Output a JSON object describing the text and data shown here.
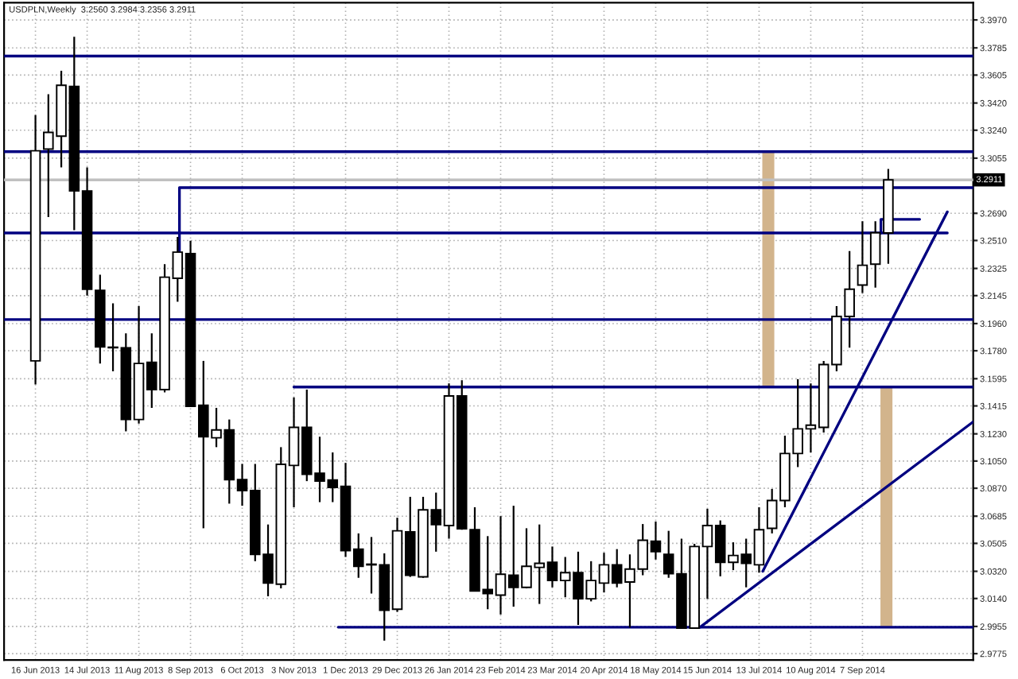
{
  "chart_data": {
    "type": "candlestick",
    "title": "USDPLN,Weekly  3.2560 3.2984 3.2356 3.2911",
    "x": [
      "2013-06-16",
      "2013-06-23",
      "2013-06-30",
      "2013-07-07",
      "2013-07-14",
      "2013-07-21",
      "2013-07-28",
      "2013-08-04",
      "2013-08-11",
      "2013-08-18",
      "2013-08-25",
      "2013-09-01",
      "2013-09-08",
      "2013-09-15",
      "2013-09-22",
      "2013-09-29",
      "2013-10-06",
      "2013-10-13",
      "2013-10-20",
      "2013-10-27",
      "2013-11-03",
      "2013-11-10",
      "2013-11-17",
      "2013-11-24",
      "2013-12-01",
      "2013-12-08",
      "2013-12-15",
      "2013-12-22",
      "2013-12-29",
      "2014-01-05",
      "2014-01-12",
      "2014-01-19",
      "2014-01-26",
      "2014-02-02",
      "2014-02-09",
      "2014-02-16",
      "2014-02-23",
      "2014-03-02",
      "2014-03-09",
      "2014-03-16",
      "2014-03-23",
      "2014-03-30",
      "2014-04-06",
      "2014-04-13",
      "2014-04-20",
      "2014-04-27",
      "2014-05-04",
      "2014-05-11",
      "2014-05-18",
      "2014-05-25",
      "2014-06-01",
      "2014-06-08",
      "2014-06-15",
      "2014-06-22",
      "2014-06-29",
      "2014-07-06",
      "2014-07-13",
      "2014-07-20",
      "2014-07-27",
      "2014-08-03",
      "2014-08-10",
      "2014-08-17",
      "2014-08-24",
      "2014-08-31",
      "2014-09-07",
      "2014-09-14",
      "2014-09-21"
    ],
    "ohlc": [
      [
        3.1713,
        3.334,
        3.1557,
        3.3104
      ],
      [
        3.3115,
        3.3478,
        3.2665,
        3.3226
      ],
      [
        3.3201,
        3.3634,
        3.2994,
        3.3537
      ],
      [
        3.353,
        3.3859,
        3.2578,
        3.2838
      ],
      [
        3.2838,
        3.2994,
        3.2146,
        3.2187
      ],
      [
        3.218,
        3.2284,
        3.1696,
        3.1806
      ],
      [
        3.1803,
        3.2094,
        3.1644,
        3.18
      ],
      [
        3.18,
        3.1896,
        3.1246,
        3.1325
      ],
      [
        3.1325,
        3.2076,
        3.1298,
        3.1696
      ],
      [
        3.1703,
        3.1896,
        3.1402,
        3.1523
      ],
      [
        3.1523,
        3.2353,
        3.1505,
        3.2267
      ],
      [
        3.226,
        3.2533,
        3.2104,
        3.2433
      ],
      [
        3.2423,
        3.2509,
        3.1412,
        3.1412
      ],
      [
        3.1419,
        3.1713,
        3.0605,
        3.1211
      ],
      [
        3.1204,
        3.1402,
        3.1142,
        3.1256
      ],
      [
        3.1256,
        3.1325,
        3.0768,
        3.0927
      ],
      [
        3.0927,
        3.1031,
        3.0754,
        3.0855
      ],
      [
        3.0855,
        3.1031,
        3.0387,
        3.0432
      ],
      [
        3.0432,
        3.063,
        3.0155,
        3.0242
      ],
      [
        3.0235,
        3.1142,
        3.0207,
        3.1028
      ],
      [
        3.1021,
        3.1471,
        3.0744,
        3.1273
      ],
      [
        3.1273,
        3.1523,
        3.0917,
        3.0962
      ],
      [
        3.0969,
        3.1211,
        3.0778,
        3.0917
      ],
      [
        3.0924,
        3.1107,
        3.0778,
        3.0875
      ],
      [
        3.0882,
        3.1038,
        3.0415,
        3.0457
      ],
      [
        3.0467,
        3.0571,
        3.0277,
        3.0353
      ],
      [
        3.0366,
        3.0547,
        3.0173,
        3.0363
      ],
      [
        3.0363,
        3.0439,
        2.9861,
        3.0062
      ],
      [
        3.0069,
        3.0675,
        3.0052,
        3.0588
      ],
      [
        3.0581,
        3.0813,
        3.0283,
        3.0294
      ],
      [
        3.0283,
        3.0813,
        3.0277,
        3.0727
      ],
      [
        3.0727,
        3.0841,
        3.045,
        3.063
      ],
      [
        3.0623,
        3.1564,
        3.0536,
        3.1481
      ],
      [
        3.1481,
        3.1585,
        3.0595,
        3.0602
      ],
      [
        3.0595,
        3.0744,
        3.019,
        3.019
      ],
      [
        3.02,
        3.0553,
        3.0069,
        3.0173
      ],
      [
        3.0162,
        3.0685,
        3.0034,
        3.0301
      ],
      [
        3.0294,
        3.0754,
        3.0086,
        3.0214
      ],
      [
        3.0214,
        3.0605,
        3.0207,
        3.0353
      ],
      [
        3.0346,
        3.063,
        3.0104,
        3.0373
      ],
      [
        3.038,
        3.0484,
        3.0214,
        3.0259
      ],
      [
        3.0259,
        3.0415,
        3.0148,
        3.0311
      ],
      [
        3.0311,
        3.045,
        2.9965,
        3.0138
      ],
      [
        3.0138,
        3.0387,
        3.0121,
        3.0259
      ],
      [
        3.0242,
        3.0443,
        3.018,
        3.0363
      ],
      [
        3.0363,
        3.0467,
        3.0214,
        3.0242
      ],
      [
        3.0249,
        3.0432,
        2.9948,
        3.0335
      ],
      [
        3.0335,
        3.0633,
        3.0294,
        3.0526
      ],
      [
        3.0519,
        3.065,
        3.0398,
        3.045
      ],
      [
        3.0432,
        3.0588,
        3.0277,
        3.0304
      ],
      [
        3.0304,
        3.0536,
        2.9944,
        2.9944
      ],
      [
        2.9944,
        3.0502,
        2.9944,
        3.0484
      ],
      [
        3.0484,
        3.0734,
        3.0138,
        3.0623
      ],
      [
        3.0623,
        3.0657,
        3.0287,
        3.038
      ],
      [
        3.038,
        3.0512,
        3.0328,
        3.0425
      ],
      [
        3.0432,
        3.0536,
        3.0214,
        3.0373
      ],
      [
        3.0363,
        3.0744,
        3.0311,
        3.0595
      ],
      [
        3.0605,
        3.0865,
        3.0571,
        3.0789
      ],
      [
        3.0789,
        3.1218,
        3.0744,
        3.11
      ],
      [
        3.11,
        3.1592,
        3.101,
        3.1263
      ],
      [
        3.1263,
        3.1564,
        3.1107,
        3.1287
      ],
      [
        3.1273,
        3.1713,
        3.1239,
        3.1689
      ],
      [
        3.1689,
        3.2076,
        3.1644,
        3.2007
      ],
      [
        3.2007,
        3.244,
        3.18,
        3.2187
      ],
      [
        3.2215,
        3.2637,
        3.2163,
        3.2346
      ],
      [
        3.2353,
        3.2637,
        3.2198,
        3.2561
      ],
      [
        3.256,
        3.2984,
        3.2356,
        3.2911
      ]
    ],
    "series": [
      {
        "type": "line",
        "color": "#000080",
        "x": [
          "2013-05-30",
          "2014-10-23"
        ],
        "values": [
          3.256,
          3.256
        ]
      },
      {
        "type": "line",
        "color": "#000080",
        "x": [
          "2013-09-02",
          "2013-09-02",
          "2014-11-06"
        ],
        "values": [
          3.242,
          3.286,
          3.286
        ]
      },
      {
        "type": "line",
        "color": "#000080",
        "x": [
          "2013-11-03",
          "2014-11-06"
        ],
        "values": [
          3.154,
          3.154
        ]
      },
      {
        "type": "line",
        "color": "#000080",
        "x": [
          "2013-11-27",
          "2014-11-06"
        ],
        "values": [
          2.995,
          2.995
        ]
      },
      {
        "type": "line",
        "color": "#000080",
        "x": [
          "2014-09-17",
          "2014-09-17",
          "2014-10-08"
        ],
        "values": [
          3.256,
          3.265,
          3.265
        ]
      },
      {
        "type": "line",
        "color": "#000080",
        "x": [
          "2014-06-11",
          "2014-11-06"
        ],
        "values": [
          2.995,
          3.131
        ]
      },
      {
        "type": "line",
        "color": "#000080",
        "x": [
          "2014-07-15",
          "2014-10-23"
        ],
        "values": [
          3.032,
          3.27
        ]
      },
      {
        "type": "bar",
        "color": "#d2b48c",
        "x": [
          "2014-07-18"
        ],
        "base": [
          3.154
        ],
        "values": [
          0.156
        ]
      },
      {
        "type": "bar",
        "color": "#d2b48c",
        "x": [
          "2014-09-20"
        ],
        "base": [
          2.995
        ],
        "values": [
          0.159
        ]
      }
    ],
    "ref_lines": [
      {
        "axis": "y",
        "value": 3.3731,
        "color": "#000080"
      },
      {
        "axis": "y",
        "value": 3.3098,
        "color": "#000080"
      },
      {
        "axis": "y",
        "value": 3.1987,
        "color": "#000080"
      },
      {
        "axis": "y",
        "value": 3.2911,
        "label": "3.2911",
        "color": "#c0c0c0"
      }
    ],
    "xlim": [
      "2013-05-30",
      "2014-11-06"
    ],
    "xticks": [
      {
        "value": "2013-06-16",
        "label": "16 Jun 2013"
      },
      {
        "value": "2013-07-14",
        "label": "14 Jul 2013"
      },
      {
        "value": "2013-08-11",
        "label": "11 Aug 2013"
      },
      {
        "value": "2013-09-08",
        "label": "8 Sep 2013"
      },
      {
        "value": "2013-10-06",
        "label": "6 Oct 2013"
      },
      {
        "value": "2013-11-03",
        "label": "3 Nov 2013"
      },
      {
        "value": "2013-12-01",
        "label": "1 Dec 2013"
      },
      {
        "value": "2013-12-29",
        "label": "29 Dec 2013"
      },
      {
        "value": "2014-01-26",
        "label": "26 Jan 2014"
      },
      {
        "value": "2014-02-23",
        "label": "23 Feb 2014"
      },
      {
        "value": "2014-03-23",
        "label": "23 Mar 2014"
      },
      {
        "value": "2014-04-20",
        "label": "20 Apr 2014"
      },
      {
        "value": "2014-05-18",
        "label": "18 May 2014"
      },
      {
        "value": "2014-06-15",
        "label": "15 Jun 2014"
      },
      {
        "value": "2014-07-13",
        "label": "13 Jul 2014"
      },
      {
        "value": "2014-08-10",
        "label": "10 Aug 2014"
      },
      {
        "value": "2014-09-07",
        "label": "7 Sep 2014"
      }
    ],
    "ylim": [
      2.9733,
      3.4084
    ],
    "yticks": [
      {
        "value": 3.397,
        "label": "3.3970"
      },
      {
        "value": 3.3785,
        "label": "3.3785"
      },
      {
        "value": 3.3605,
        "label": "3.3605"
      },
      {
        "value": 3.342,
        "label": "3.3420"
      },
      {
        "value": 3.324,
        "label": "3.3240"
      },
      {
        "value": 3.3055,
        "label": "3.3055"
      },
      {
        "value": 3.269,
        "label": "3.2690"
      },
      {
        "value": 3.251,
        "label": "3.2510"
      },
      {
        "value": 3.2325,
        "label": "3.2325"
      },
      {
        "value": 3.2145,
        "label": "3.2145"
      },
      {
        "value": 3.196,
        "label": "3.1960"
      },
      {
        "value": 3.178,
        "label": "3.1780"
      },
      {
        "value": 3.1595,
        "label": "3.1595"
      },
      {
        "value": 3.1415,
        "label": "3.1415"
      },
      {
        "value": 3.123,
        "label": "3.1230"
      },
      {
        "value": 3.105,
        "label": "3.1050"
      },
      {
        "value": 3.087,
        "label": "3.0870"
      },
      {
        "value": 3.0685,
        "label": "3.0685"
      },
      {
        "value": 3.0505,
        "label": "3.0505"
      },
      {
        "value": 3.032,
        "label": "3.0320"
      },
      {
        "value": 3.014,
        "label": "3.0140"
      },
      {
        "value": 2.9955,
        "label": "2.9955"
      },
      {
        "value": 2.9775,
        "label": "2.9775"
      }
    ],
    "grid": true
  }
}
